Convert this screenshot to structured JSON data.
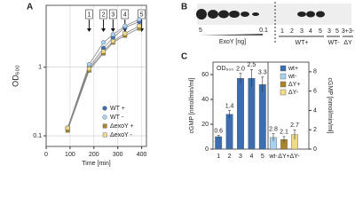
{
  "panels": [
    "A",
    "B",
    "C"
  ],
  "blot": {
    "dose_hi": "5",
    "dose_lo": "0.1",
    "dose_label": "ExoY [ng]",
    "lanes": [
      "1",
      "2",
      "3",
      "4",
      "5",
      "3",
      "5",
      "3+3-"
    ],
    "groups": [
      "WT+",
      "WT-",
      "ΔY"
    ]
  },
  "chart_data": [
    {
      "type": "line",
      "xlabel": "Time [min]",
      "ylabel": "OD₆₀₀",
      "log_y": true,
      "grid": true,
      "x": [
        90,
        180,
        240,
        280,
        330,
        390
      ],
      "xlim": [
        0,
        420
      ],
      "xticks": [
        0,
        100,
        200,
        300,
        400
      ],
      "ylim": [
        0.07,
        8
      ],
      "yticks": [
        0.1,
        1
      ],
      "markers": {
        "x": [
          180,
          240,
          280,
          330,
          400
        ],
        "labels": [
          "1",
          "2",
          "3",
          "4",
          "5"
        ]
      },
      "series": [
        {
          "name": "WT +",
          "color": "#3b6eb0",
          "marker": "circle",
          "values": [
            0.13,
            1.0,
            1.9,
            2.7,
            3.8,
            4.6
          ]
        },
        {
          "name": "WT -",
          "color": "#a9d0ef",
          "marker": "circle",
          "values": [
            0.13,
            1.1,
            2.3,
            3.0,
            4.0,
            5.0
          ]
        },
        {
          "name": "ΔexoY +",
          "color": "#a8842a",
          "marker": "square",
          "values": [
            0.12,
            0.9,
            1.6,
            2.3,
            2.9,
            3.7
          ]
        },
        {
          "name": "ΔexoY -",
          "color": "#f0da8a",
          "marker": "square",
          "values": [
            0.13,
            0.95,
            1.7,
            2.4,
            3.1,
            4.0
          ]
        }
      ]
    },
    {
      "type": "bar",
      "ylabel": "cGMP [nmol/min/ml]",
      "y2label": "cGMP [nmol/min/ml]",
      "note": "OD₆₀₀",
      "ylim": [
        0,
        70
      ],
      "yticks": [
        0,
        20,
        40,
        60
      ],
      "y2lim": [
        0,
        9
      ],
      "y2ticks": [
        0,
        2,
        4,
        6,
        8
      ],
      "legend": [
        {
          "name": "wt+",
          "color": "#3b6eb0"
        },
        {
          "name": "wt-",
          "color": "#a9d0ef"
        },
        {
          "name": "ΔY+",
          "color": "#a8842a"
        },
        {
          "name": "ΔY-",
          "color": "#f0da8a"
        }
      ],
      "series": [
        {
          "axis": "y",
          "categories": [
            "1",
            "2",
            "3",
            "4",
            "5"
          ],
          "values": [
            10,
            28,
            57,
            57,
            52
          ],
          "errors": [
            1,
            3,
            4,
            7,
            6
          ],
          "colors": [
            "#3b6eb0",
            "#3b6eb0",
            "#3b6eb0",
            "#3b6eb0",
            "#3b6eb0"
          ],
          "od_labels": [
            "0.6",
            "1.4",
            "2.0",
            "2.5",
            "3.3"
          ]
        },
        {
          "axis": "y2",
          "categories": [
            "wt-",
            "ΔY+",
            "ΔY-"
          ],
          "values": [
            1.2,
            1.0,
            1.5
          ],
          "errors": [
            0.4,
            0.3,
            0.5
          ],
          "colors": [
            "#a9d0ef",
            "#a8842a",
            "#f0da8a"
          ],
          "od_labels": [
            "2.8",
            "2.1",
            "2.7"
          ]
        }
      ]
    }
  ]
}
